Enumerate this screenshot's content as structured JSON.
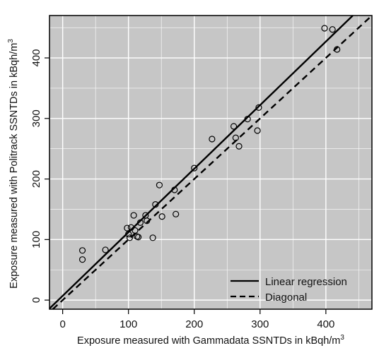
{
  "chart_data": {
    "type": "scatter",
    "xlabel": "Exposure measured with Gammadata SSNTDs in kBqh/m",
    "xlabel_sup": "3",
    "ylabel": "Exposure measured with Politrack SSNTDs in kBqh/m",
    "ylabel_sup": "3",
    "xlim": [
      -20,
      470
    ],
    "ylim": [
      -15,
      470
    ],
    "xticks": [
      0,
      100,
      200,
      300,
      400
    ],
    "yticks": [
      0,
      100,
      200,
      300,
      400
    ],
    "grid": true,
    "legend_position": "bottom-right",
    "colors": {
      "background": "#c6c6c6",
      "grid": "#ffffff",
      "series": "#000000"
    },
    "points": [
      {
        "x": 30,
        "y": 82
      },
      {
        "x": 30,
        "y": 67
      },
      {
        "x": 65,
        "y": 83
      },
      {
        "x": 98,
        "y": 119
      },
      {
        "x": 100,
        "y": 109
      },
      {
        "x": 102,
        "y": 103
      },
      {
        "x": 104,
        "y": 120
      },
      {
        "x": 108,
        "y": 140
      },
      {
        "x": 110,
        "y": 115
      },
      {
        "x": 113,
        "y": 105
      },
      {
        "x": 115,
        "y": 104
      },
      {
        "x": 118,
        "y": 128
      },
      {
        "x": 126,
        "y": 140
      },
      {
        "x": 128,
        "y": 131
      },
      {
        "x": 137,
        "y": 103
      },
      {
        "x": 141,
        "y": 158
      },
      {
        "x": 147,
        "y": 190
      },
      {
        "x": 151,
        "y": 138
      },
      {
        "x": 170,
        "y": 182
      },
      {
        "x": 172,
        "y": 142
      },
      {
        "x": 200,
        "y": 218
      },
      {
        "x": 227,
        "y": 266
      },
      {
        "x": 260,
        "y": 287
      },
      {
        "x": 263,
        "y": 268
      },
      {
        "x": 268,
        "y": 254
      },
      {
        "x": 281,
        "y": 299
      },
      {
        "x": 296,
        "y": 280
      },
      {
        "x": 298,
        "y": 318
      },
      {
        "x": 398,
        "y": 449
      },
      {
        "x": 410,
        "y": 447
      },
      {
        "x": 417,
        "y": 414
      }
    ],
    "lines": [
      {
        "name": "Linear regression",
        "style": "solid",
        "slope": 1.05,
        "intercept": 7
      },
      {
        "name": "Diagonal",
        "style": "dashed",
        "slope": 1.0,
        "intercept": 0
      }
    ]
  }
}
